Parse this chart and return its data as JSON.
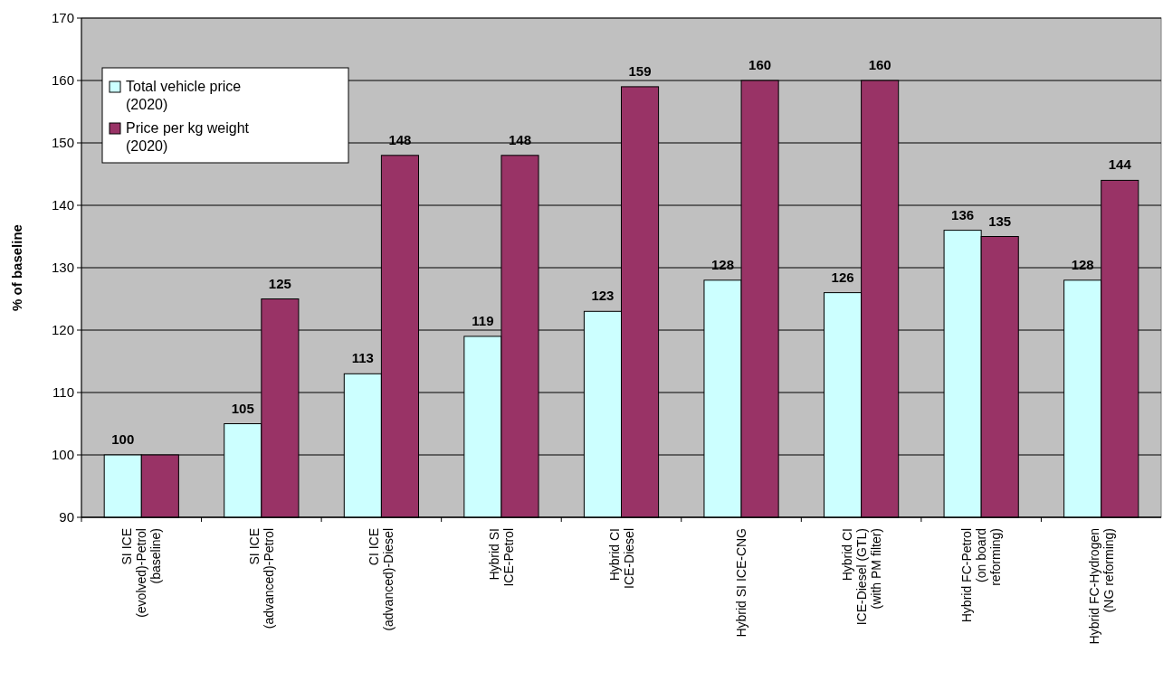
{
  "chart_data": {
    "type": "bar",
    "ylabel": "% of baseline",
    "categories": [
      "SI ICE (evolved)-Petrol (baseline)",
      "SI ICE (advanced)-Petrol",
      "CI ICE (advanced)-Diesel",
      "Hybrid SI ICE-Petrol",
      "Hybrid CI ICE-Diesel",
      "Hybrid SI ICE-CNG",
      "Hybrid CI ICE-Diesel (GTL) (with PM filter)",
      "Hybrid FC-Petrol (on board reforming)",
      "Hybrid FC-Hydrogen (NG reforming)"
    ],
    "series": [
      {
        "name": "Total vehicle price (2020)",
        "color": "#ccffff",
        "values": [
          100,
          105,
          113,
          119,
          123,
          128,
          126,
          136,
          128
        ],
        "value_labels": [
          "100",
          "105",
          "113",
          "119",
          "123",
          "128",
          "126",
          "136",
          "128"
        ]
      },
      {
        "name": "Price per kg weight (2020)",
        "color": "#993366",
        "values": [
          100,
          125,
          148,
          148,
          159,
          160,
          160,
          135,
          144
        ],
        "value_labels": [
          null,
          "125",
          "148",
          "148",
          "159",
          "160",
          "160",
          "135",
          "144"
        ]
      }
    ],
    "ylim": [
      90,
      170
    ],
    "yticks": [
      90,
      100,
      110,
      120,
      130,
      140,
      150,
      160,
      170
    ],
    "grid": "y",
    "legend": "top left"
  }
}
